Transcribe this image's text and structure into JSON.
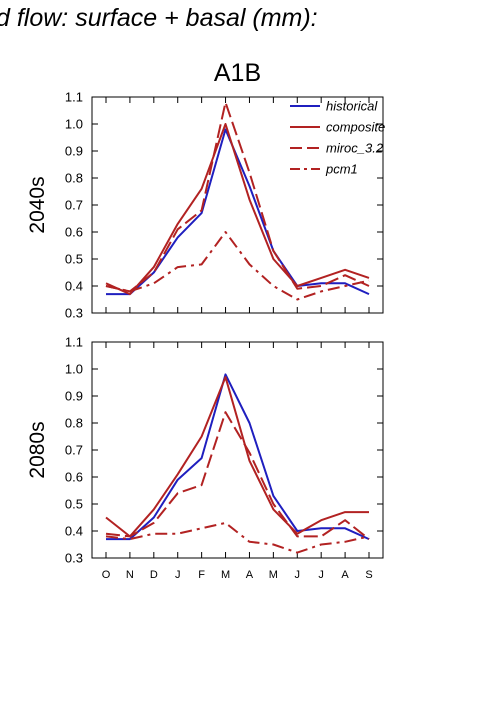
{
  "page_title": "d flow: surface + basal (mm):",
  "figure_title": "A1B",
  "legend": [
    "historical",
    "composite",
    "miroc_3.2",
    "pcm1"
  ],
  "colors": {
    "historical": "#1f1fbf",
    "composite": "#b22222",
    "miroc_3.2": "#b22222",
    "pcm1": "#b22222"
  },
  "chart_data": [
    {
      "type": "line",
      "ylabel": "2040s",
      "ylim": [
        0.3,
        1.1
      ],
      "yticks": [
        "0.3",
        "0.4",
        "0.5",
        "0.6",
        "0.7",
        "0.8",
        "0.9",
        "1.0",
        "1.1"
      ],
      "categories": [
        "O",
        "N",
        "D",
        "J",
        "F",
        "M",
        "A",
        "M",
        "J",
        "J",
        "A",
        "S"
      ],
      "show_xticklabels": false,
      "legend_position": "top-right",
      "series": [
        {
          "name": "historical",
          "style": "solid",
          "values": [
            0.37,
            0.37,
            0.45,
            0.58,
            0.67,
            0.98,
            0.77,
            0.53,
            0.4,
            0.41,
            0.41,
            0.37
          ]
        },
        {
          "name": "composite",
          "style": "solid",
          "values": [
            0.41,
            0.37,
            0.47,
            0.63,
            0.76,
            1.0,
            0.72,
            0.5,
            0.4,
            0.43,
            0.46,
            0.43
          ]
        },
        {
          "name": "miroc_3.2",
          "style": "dashed",
          "values": [
            0.4,
            0.38,
            0.45,
            0.61,
            0.68,
            1.08,
            0.82,
            0.53,
            0.39,
            0.4,
            0.44,
            0.4
          ]
        },
        {
          "name": "pcm1",
          "style": "dashdot",
          "values": [
            0.4,
            0.38,
            0.41,
            0.47,
            0.48,
            0.6,
            0.48,
            0.4,
            0.35,
            0.38,
            0.4,
            0.42
          ]
        }
      ]
    },
    {
      "type": "line",
      "ylabel": "2080s",
      "ylim": [
        0.3,
        1.1
      ],
      "yticks": [
        "0.3",
        "0.4",
        "0.5",
        "0.6",
        "0.7",
        "0.8",
        "0.9",
        "1.0",
        "1.1"
      ],
      "categories": [
        "O",
        "N",
        "D",
        "J",
        "F",
        "M",
        "A",
        "M",
        "J",
        "J",
        "A",
        "S"
      ],
      "show_xticklabels": true,
      "series": [
        {
          "name": "historical",
          "style": "solid",
          "values": [
            0.37,
            0.37,
            0.45,
            0.59,
            0.67,
            0.98,
            0.8,
            0.53,
            0.4,
            0.41,
            0.41,
            0.37
          ]
        },
        {
          "name": "composite",
          "style": "solid",
          "values": [
            0.45,
            0.38,
            0.48,
            0.61,
            0.75,
            0.97,
            0.66,
            0.48,
            0.39,
            0.44,
            0.47,
            0.47
          ]
        },
        {
          "name": "miroc_3.2",
          "style": "dashed",
          "values": [
            0.39,
            0.38,
            0.43,
            0.54,
            0.57,
            0.84,
            0.69,
            0.5,
            0.38,
            0.38,
            0.44,
            0.37
          ]
        },
        {
          "name": "pcm1",
          "style": "dashdot",
          "values": [
            0.38,
            0.37,
            0.39,
            0.39,
            0.41,
            0.43,
            0.36,
            0.35,
            0.32,
            0.35,
            0.36,
            0.38
          ]
        }
      ]
    }
  ]
}
